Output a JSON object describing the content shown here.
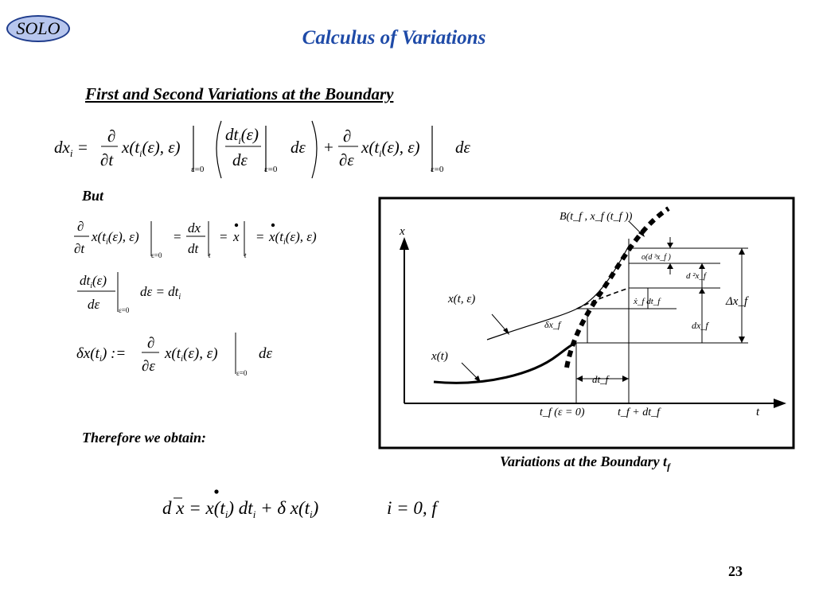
{
  "logo": {
    "text": "SOLO"
  },
  "slide": {
    "title": "Calculus of Variations",
    "subtitle": "First and  Second Variations at the Boundary",
    "but_label": "But",
    "therefore_label": "Therefore we obtain:",
    "caption": "Variations at the Boundary t",
    "caption_sub": "f",
    "page_number": "23"
  },
  "equations": {
    "eq_main_lhs": "dx",
    "eq_final": "dx = ẋ(tᵢ) dtᵢ + δx(tᵢ)    i = 0, f"
  },
  "diagram": {
    "y_axis_label": "x",
    "x_axis_label": "t",
    "curve_boundary_label": "B(t_f , x_f (t_f ))",
    "curve_varied_label": "x(t, ε)",
    "curve_nominal_label": "x(t)",
    "tick_t0": "t_f (ε = 0)",
    "tick_t1": "t_f + dt_f",
    "dt_label": "dt_f",
    "delta_x_label": "δx_f",
    "xdot_dt_label": "ẋ_f dt_f",
    "dx_f_label": "dx_f",
    "d2x_label": "d ²x_f",
    "o_d3x_label": "o(d ³x_f )",
    "Delta_x_label": "Δx_f"
  }
}
